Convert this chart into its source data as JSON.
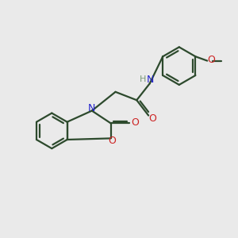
{
  "background_color": "#eaeaea",
  "bond_color": "#2d4a2d",
  "n_color": "#2222cc",
  "o_color": "#cc2222",
  "h_color": "#7a9a7a",
  "line_width": 1.6,
  "figsize": [
    3.0,
    3.0
  ],
  "dpi": 100,
  "xlim": [
    0,
    10
  ],
  "ylim": [
    0,
    10
  ]
}
